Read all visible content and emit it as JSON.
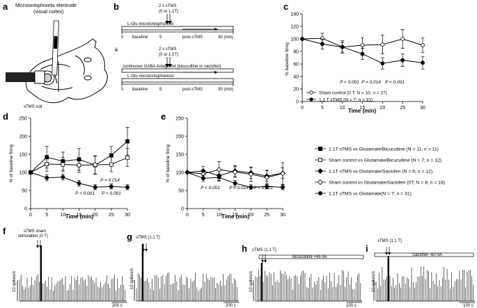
{
  "panel_labels": {
    "a": "a",
    "b": "b",
    "c": "c",
    "d": "d",
    "e": "e",
    "f": "f",
    "g": "g",
    "h": "h",
    "i": "i"
  },
  "panel_a": {
    "title_line1": "Microiontophoretic electrode",
    "title_line2": "(visual cortex)",
    "coil_label": "sTMS coil"
  },
  "panel_b": {
    "roman_ii": "ii",
    "i": {
      "stim_line1": "2 x sTMS",
      "stim_line2": "(0 or 1.1T)",
      "bar_label": "L-Glu microiontophoresis",
      "t0": "0",
      "baseline": "baseline",
      "t5": "5",
      "post": "post-sTMS",
      "t30": "30 (min)"
    },
    "ii": {
      "stim_line1": "2 x sTMS",
      "stim_line2": "(0 or 1.1T)",
      "antagonist_label": "continuous GABA Antagonist (bicuculline or saclofen)",
      "bar_label": "L-Glu microiontophoresis",
      "t0": "0",
      "baseline": "baseline",
      "t5": "5",
      "post": "post-sTMS",
      "t30": "30 (min)"
    }
  },
  "chart_data": [
    {
      "id": "c",
      "type": "line",
      "ylabel": "% baseline firing",
      "xlabel": "Time (min)",
      "ylim": [
        0,
        140
      ],
      "yticks": [
        "0",
        "20",
        "40",
        "60",
        "80",
        "100",
        "120",
        "140"
      ],
      "xticks": [
        "0",
        "5",
        "10",
        "15",
        "20",
        "25",
        "30"
      ],
      "x": [
        0,
        5,
        10,
        15,
        20,
        25,
        30
      ],
      "series": [
        {
          "name": "Sham control (0 T; N = 10; n = 27)",
          "marker": "open-circle",
          "values": [
            100,
            101,
            87,
            90,
            91,
            100,
            90
          ],
          "err": [
            0,
            8,
            10,
            12,
            15,
            15,
            12
          ]
        },
        {
          "name": "1.1 T sTMS (N = 7; n = 31)",
          "marker": "filled-circle",
          "values": [
            100,
            92,
            87,
            76,
            61,
            66,
            62
          ],
          "err": [
            0,
            8,
            8,
            9,
            9,
            10,
            10
          ]
        }
      ],
      "annotations": [
        "P < 0.001",
        "P = 0.014",
        "P < 0.001"
      ],
      "legend": [
        "Sham control (0 T; N = 10; n = 27)",
        "1.1 T sTMS (N = 7; n = 31)"
      ]
    },
    {
      "id": "d",
      "type": "line",
      "ylabel": "% of baseline firing",
      "xlabel": "Time (min)",
      "ylim": [
        0,
        250
      ],
      "yticks": [
        "0",
        "50",
        "100",
        "150",
        "200",
        "250"
      ],
      "xticks": [
        "0",
        "5",
        "10",
        "15",
        "20",
        "25",
        "30"
      ],
      "x": [
        0,
        5,
        10,
        15,
        20,
        25,
        30
      ],
      "series": [
        {
          "name": "1.1T sTMS vs Glutamate/Bicuculline (N = 11; n = 11)",
          "marker": "filled-square",
          "values": [
            100,
            142,
            131,
            136,
            120,
            147,
            186
          ],
          "err": [
            0,
            30,
            25,
            30,
            25,
            25,
            38
          ]
        },
        {
          "name": "Sham control vs Glutamate/Bicuculline (N = 7; n = 12)",
          "marker": "open-square",
          "values": [
            100,
            123,
            122,
            120,
            121,
            122,
            141
          ],
          "err": [
            0,
            20,
            20,
            20,
            25,
            20,
            25
          ]
        },
        {
          "name": "1.1T sTMS vs Glutamate (N = 7; n = 31)",
          "marker": "filled-circle",
          "values": [
            100,
            85,
            87,
            70,
            59,
            61,
            59
          ],
          "err": [
            0,
            8,
            8,
            8,
            7,
            7,
            7
          ]
        }
      ],
      "annotations": [
        "P = 0.014",
        "P < 0.001",
        "P < 0.001"
      ]
    },
    {
      "id": "e",
      "type": "line",
      "ylabel": "% of baseline firing",
      "xlabel": "Time (min)",
      "ylim": [
        0,
        250
      ],
      "yticks": [
        "0",
        "50",
        "100",
        "150",
        "200",
        "250"
      ],
      "xticks": [
        "0",
        "5",
        "10",
        "15",
        "20",
        "25",
        "30"
      ],
      "x": [
        0,
        5,
        10,
        15,
        20,
        25,
        30
      ],
      "series": [
        {
          "name": "1.1T sTMS vs Glutamate/Saclofen (N = 6; n = 12)",
          "marker": "filled-diamond",
          "values": [
            100,
            104,
            91,
            104,
            99,
            90,
            98
          ],
          "err": [
            0,
            12,
            15,
            15,
            15,
            15,
            15
          ]
        },
        {
          "name": "Sham control vs Glutamate/Saclofen (0T; N = 8; n = 18)",
          "marker": "open-diamond",
          "values": [
            100,
            96,
            108,
            101,
            95,
            86,
            97
          ],
          "err": [
            0,
            10,
            22,
            15,
            20,
            20,
            30
          ]
        },
        {
          "name": "1.1T sTMS vs Glutamate (N = 7; n = 31)",
          "marker": "filled-circle",
          "values": [
            100,
            84,
            86,
            70,
            59,
            61,
            59
          ],
          "err": [
            0,
            8,
            8,
            8,
            7,
            7,
            7
          ]
        }
      ],
      "annotations": [
        "P < 0.001",
        "P = 0.014",
        "P < 0.001"
      ]
    }
  ],
  "shared_legend": [
    {
      "marker": "filled-square",
      "label": "1.1T sTMS vs Glutamate/Bicuculline (N = 11; n = 11)"
    },
    {
      "marker": "open-square",
      "label": "Sham control vs Glutamate/Bicuculline (N = 7; n = 12)"
    },
    {
      "marker": "filled-diamond",
      "label": "1.1T sTMS vs Glutamate/Saclofen (N = 6; n = 12)"
    },
    {
      "marker": "open-diamond",
      "label": "Sham control vs Glutamate/Saclofen (0T; N = 8; n = 18)"
    },
    {
      "marker": "filled-circle",
      "label": "1.1T sTMS vs Glutamate(N = 7; n = 31)"
    }
  ],
  "traces": {
    "f": {
      "stim_line1": "sTMS sham",
      "stim_line2": "stimulation (0 T)",
      "scale_y": "10 spikes/s",
      "scale_x": "200 s"
    },
    "g": {
      "stim_line1": "sTMS (1.1 T)",
      "scale_y": "10 spikes/s",
      "scale_x": "200 s"
    },
    "h": {
      "stim_line1": "sTMS (1.1 T)",
      "drug": "Bicuculline +45 nA",
      "scale_y": "10 spikes/s",
      "scale_x": "100 s"
    },
    "i": {
      "stim_line1": "sTMS (1.1 T)",
      "drug": "Saclofen -60 nA",
      "scale_y": "10 spikes/s",
      "scale_x": "100 s"
    }
  }
}
